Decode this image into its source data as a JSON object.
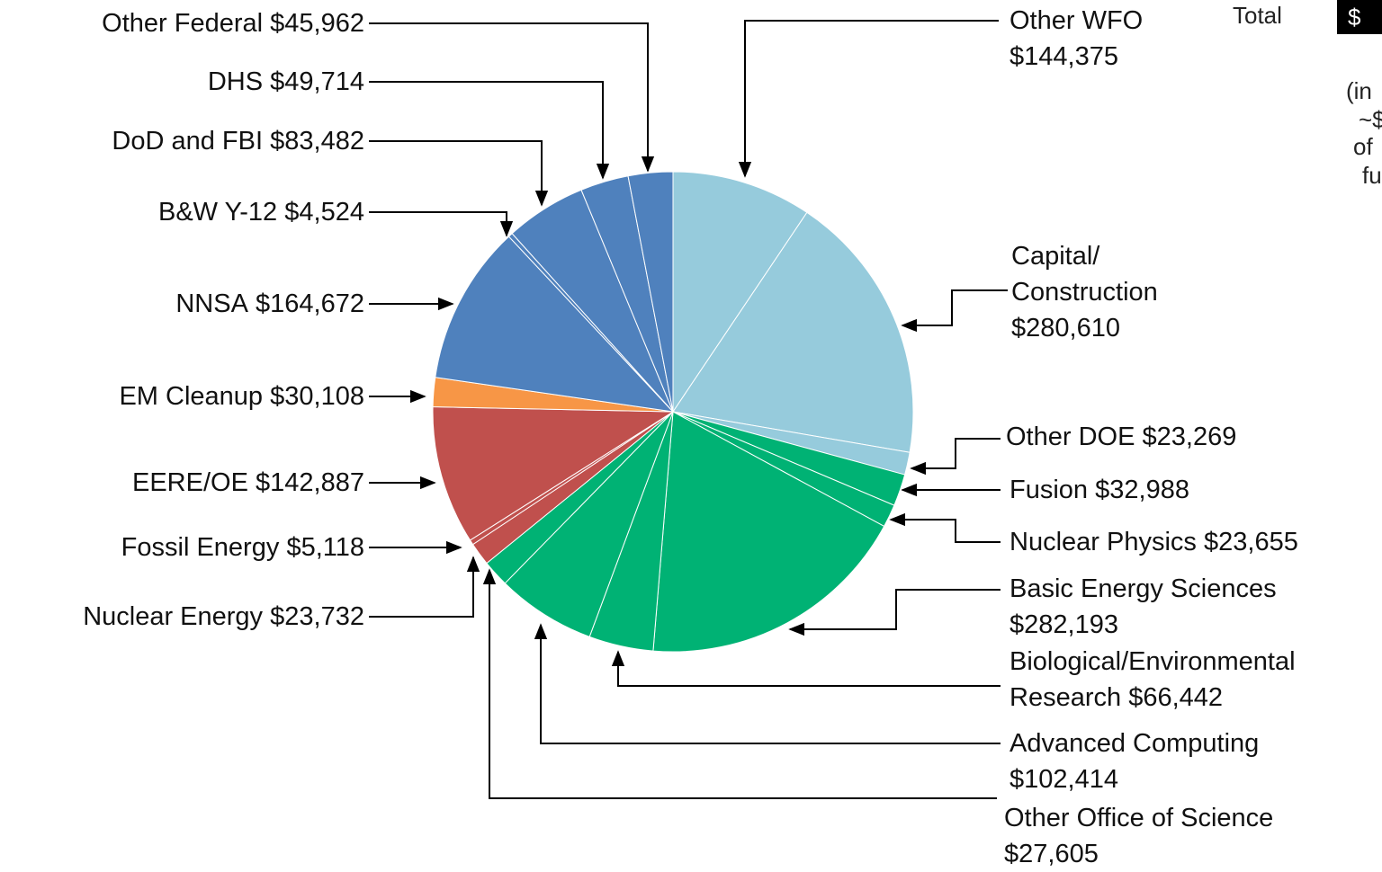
{
  "chart_data": {
    "type": "pie",
    "categories": [
      "Other WFO",
      "Capital/\nConstruction",
      "Other DOE",
      "Fusion",
      "Nuclear Physics",
      "Basic Energy Sciences",
      "Biological/Environmental\nResearch",
      "Advanced Computing",
      "Other Office of Science",
      "Nuclear Energy",
      "Fossil Energy",
      "EERE/OE",
      "EM Cleanup",
      "NNSA",
      "B&W Y-12",
      "DoD and FBI",
      "DHS",
      "Other Federal"
    ],
    "values": [
      144375,
      280610,
      23269,
      32988,
      23655,
      282193,
      66442,
      102414,
      27605,
      23732,
      5118,
      142887,
      30108,
      164672,
      4524,
      83482,
      49714,
      45962
    ],
    "value_labels": [
      "$144,375",
      "$280,610",
      "$23,269",
      "$32,988",
      "$23,655",
      "$282,193",
      "$66,442",
      "$102,414",
      "$27,605",
      "$23,732",
      "$5,118",
      "$142,887",
      "$30,108",
      "$164,672",
      "$4,524",
      "$83,482",
      "$49,714",
      "$45,962"
    ],
    "colors": [
      "#96cbdc",
      "#96cbdc",
      "#96cbdc",
      "#00b274",
      "#00b274",
      "#00b274",
      "#00b274",
      "#00b274",
      "#00b274",
      "#c0504d",
      "#c0504d",
      "#c0504d",
      "#f79646",
      "#4f81bd",
      "#4f81bd",
      "#4f81bd",
      "#4f81bd",
      "#4f81bd"
    ],
    "annotations": {
      "total_label": "Total",
      "total_value": "$",
      "note_lines": [
        "(in",
        "~$",
        "of",
        "fu"
      ]
    }
  }
}
